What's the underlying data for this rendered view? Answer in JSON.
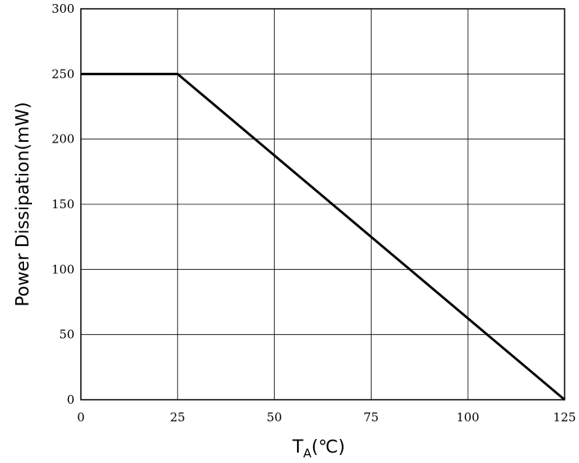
{
  "chart_data": {
    "type": "line",
    "title": "",
    "xlabel_main": "T",
    "xlabel_sub": "A",
    "xlabel_unit": "(℃)",
    "ylabel": "Power Dissipation(mW)",
    "xlim": [
      0,
      125
    ],
    "ylim": [
      0,
      300
    ],
    "xticks": [
      "0",
      "25",
      "50",
      "75",
      "100",
      "125"
    ],
    "yticks": [
      "0",
      "50",
      "100",
      "150",
      "200",
      "250",
      "300"
    ],
    "grid": true,
    "series": [
      {
        "x": [
          0,
          25,
          125
        ],
        "y": [
          250,
          250,
          0
        ]
      }
    ],
    "colors": {
      "line": "#000000",
      "grid": "#000000",
      "frame": "#000000"
    }
  }
}
